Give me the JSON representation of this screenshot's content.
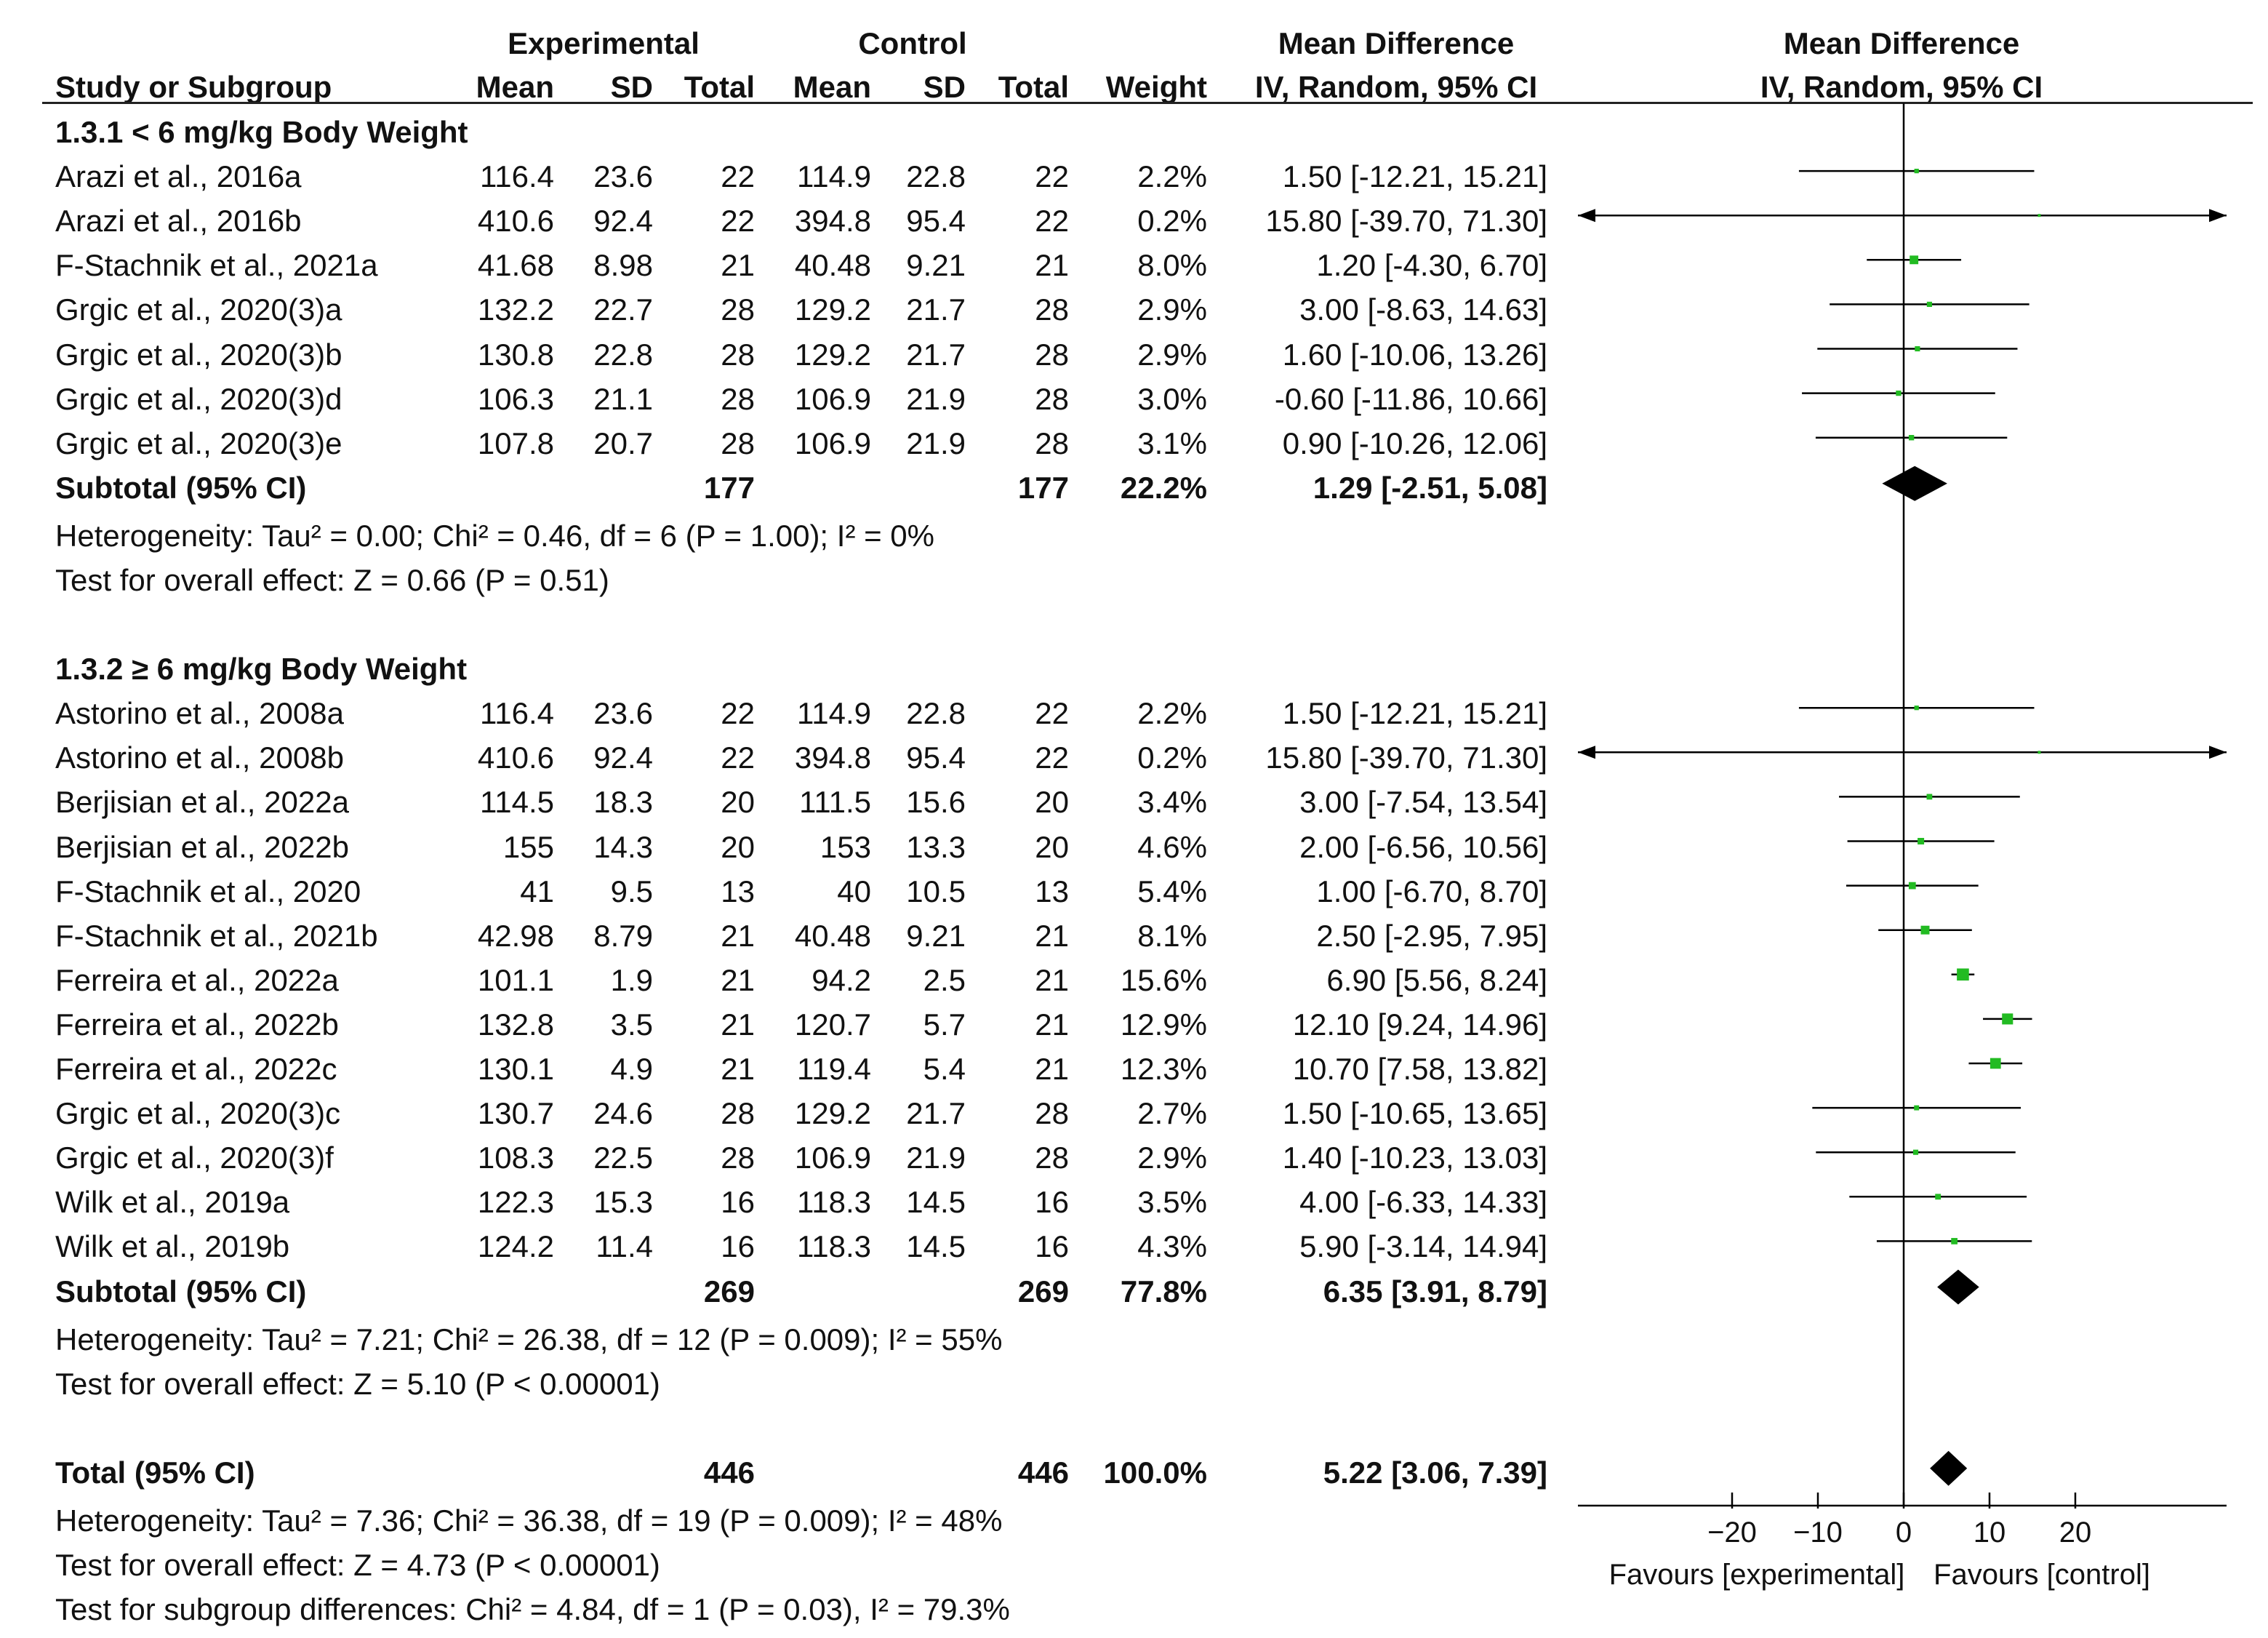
{
  "chart_data": {
    "type": "forest",
    "group_headers": {
      "experimental": "Experimental",
      "control": "Control",
      "effect_table": "Mean Difference",
      "effect_plot": "Mean Difference"
    },
    "columns": {
      "study": "Study or Subgroup",
      "exp_mean": "Mean",
      "exp_sd": "SD",
      "exp_total": "Total",
      "ctl_mean": "Mean",
      "ctl_sd": "SD",
      "ctl_total": "Total",
      "weight": "Weight",
      "ci": "IV, Random, 95% CI",
      "plot_ci": "IV, Random, 95% CI"
    },
    "subgroups": [
      {
        "title": "1.3.1 < 6 mg/kg Body Weight",
        "studies": [
          {
            "name": "Arazi et al., 2016a",
            "exp_mean": "116.4",
            "exp_sd": "23.6",
            "exp_total": "22",
            "ctl_mean": "114.9",
            "ctl_sd": "22.8",
            "ctl_total": "22",
            "weight": "2.2%",
            "ci": "1.50 [-12.21, 15.21]",
            "md": 1.5,
            "lo": -12.21,
            "hi": 15.21
          },
          {
            "name": "Arazi et al., 2016b",
            "exp_mean": "410.6",
            "exp_sd": "92.4",
            "exp_total": "22",
            "ctl_mean": "394.8",
            "ctl_sd": "95.4",
            "ctl_total": "22",
            "weight": "0.2%",
            "ci": "15.80 [-39.70, 71.30]",
            "md": 15.8,
            "lo": -39.7,
            "hi": 71.3
          },
          {
            "name": "F-Stachnik et al., 2021a",
            "exp_mean": "41.68",
            "exp_sd": "8.98",
            "exp_total": "21",
            "ctl_mean": "40.48",
            "ctl_sd": "9.21",
            "ctl_total": "21",
            "weight": "8.0%",
            "ci": "1.20 [-4.30, 6.70]",
            "md": 1.2,
            "lo": -4.3,
            "hi": 6.7
          },
          {
            "name": "Grgic et al., 2020(3)a",
            "exp_mean": "132.2",
            "exp_sd": "22.7",
            "exp_total": "28",
            "ctl_mean": "129.2",
            "ctl_sd": "21.7",
            "ctl_total": "28",
            "weight": "2.9%",
            "ci": "3.00 [-8.63, 14.63]",
            "md": 3.0,
            "lo": -8.63,
            "hi": 14.63
          },
          {
            "name": "Grgic et al., 2020(3)b",
            "exp_mean": "130.8",
            "exp_sd": "22.8",
            "exp_total": "28",
            "ctl_mean": "129.2",
            "ctl_sd": "21.7",
            "ctl_total": "28",
            "weight": "2.9%",
            "ci": "1.60 [-10.06, 13.26]",
            "md": 1.6,
            "lo": -10.06,
            "hi": 13.26
          },
          {
            "name": "Grgic et al., 2020(3)d",
            "exp_mean": "106.3",
            "exp_sd": "21.1",
            "exp_total": "28",
            "ctl_mean": "106.9",
            "ctl_sd": "21.9",
            "ctl_total": "28",
            "weight": "3.0%",
            "ci": "-0.60 [-11.86, 10.66]",
            "md": -0.6,
            "lo": -11.86,
            "hi": 10.66
          },
          {
            "name": "Grgic et al., 2020(3)e",
            "exp_mean": "107.8",
            "exp_sd": "20.7",
            "exp_total": "28",
            "ctl_mean": "106.9",
            "ctl_sd": "21.9",
            "ctl_total": "28",
            "weight": "3.1%",
            "ci": "0.90 [-10.26, 12.06]",
            "md": 0.9,
            "lo": -10.26,
            "hi": 12.06
          }
        ],
        "subtotal": {
          "label": "Subtotal (95% CI)",
          "exp_total": "177",
          "ctl_total": "177",
          "weight": "22.2%",
          "ci": "1.29 [-2.51, 5.08]",
          "md": 1.29,
          "lo": -2.51,
          "hi": 5.08
        },
        "heterogeneity": "Heterogeneity: Tau² = 0.00; Chi² = 0.46, df = 6 (P = 1.00); I² = 0%",
        "overall": "Test for overall effect: Z = 0.66 (P = 0.51)"
      },
      {
        "title": "1.3.2 ≥ 6 mg/kg Body Weight",
        "studies": [
          {
            "name": "Astorino et al., 2008a",
            "exp_mean": "116.4",
            "exp_sd": "23.6",
            "exp_total": "22",
            "ctl_mean": "114.9",
            "ctl_sd": "22.8",
            "ctl_total": "22",
            "weight": "2.2%",
            "ci": "1.50 [-12.21, 15.21]",
            "md": 1.5,
            "lo": -12.21,
            "hi": 15.21
          },
          {
            "name": "Astorino et al., 2008b",
            "exp_mean": "410.6",
            "exp_sd": "92.4",
            "exp_total": "22",
            "ctl_mean": "394.8",
            "ctl_sd": "95.4",
            "ctl_total": "22",
            "weight": "0.2%",
            "ci": "15.80 [-39.70, 71.30]",
            "md": 15.8,
            "lo": -39.7,
            "hi": 71.3
          },
          {
            "name": "Berjisian et al., 2022a",
            "exp_mean": "114.5",
            "exp_sd": "18.3",
            "exp_total": "20",
            "ctl_mean": "111.5",
            "ctl_sd": "15.6",
            "ctl_total": "20",
            "weight": "3.4%",
            "ci": "3.00 [-7.54, 13.54]",
            "md": 3.0,
            "lo": -7.54,
            "hi": 13.54
          },
          {
            "name": "Berjisian et al., 2022b",
            "exp_mean": "155",
            "exp_sd": "14.3",
            "exp_total": "20",
            "ctl_mean": "153",
            "ctl_sd": "13.3",
            "ctl_total": "20",
            "weight": "4.6%",
            "ci": "2.00 [-6.56, 10.56]",
            "md": 2.0,
            "lo": -6.56,
            "hi": 10.56
          },
          {
            "name": "F-Stachnik et al., 2020",
            "exp_mean": "41",
            "exp_sd": "9.5",
            "exp_total": "13",
            "ctl_mean": "40",
            "ctl_sd": "10.5",
            "ctl_total": "13",
            "weight": "5.4%",
            "ci": "1.00 [-6.70, 8.70]",
            "md": 1.0,
            "lo": -6.7,
            "hi": 8.7
          },
          {
            "name": "F-Stachnik et al., 2021b",
            "exp_mean": "42.98",
            "exp_sd": "8.79",
            "exp_total": "21",
            "ctl_mean": "40.48",
            "ctl_sd": "9.21",
            "ctl_total": "21",
            "weight": "8.1%",
            "ci": "2.50 [-2.95, 7.95]",
            "md": 2.5,
            "lo": -2.95,
            "hi": 7.95
          },
          {
            "name": "Ferreira et al., 2022a",
            "exp_mean": "101.1",
            "exp_sd": "1.9",
            "exp_total": "21",
            "ctl_mean": "94.2",
            "ctl_sd": "2.5",
            "ctl_total": "21",
            "weight": "15.6%",
            "ci": "6.90 [5.56, 8.24]",
            "md": 6.9,
            "lo": 5.56,
            "hi": 8.24
          },
          {
            "name": "Ferreira et al., 2022b",
            "exp_mean": "132.8",
            "exp_sd": "3.5",
            "exp_total": "21",
            "ctl_mean": "120.7",
            "ctl_sd": "5.7",
            "ctl_total": "21",
            "weight": "12.9%",
            "ci": "12.10 [9.24, 14.96]",
            "md": 12.1,
            "lo": 9.24,
            "hi": 14.96
          },
          {
            "name": "Ferreira et al., 2022c",
            "exp_mean": "130.1",
            "exp_sd": "4.9",
            "exp_total": "21",
            "ctl_mean": "119.4",
            "ctl_sd": "5.4",
            "ctl_total": "21",
            "weight": "12.3%",
            "ci": "10.70 [7.58, 13.82]",
            "md": 10.7,
            "lo": 7.58,
            "hi": 13.82
          },
          {
            "name": "Grgic et al., 2020(3)c",
            "exp_mean": "130.7",
            "exp_sd": "24.6",
            "exp_total": "28",
            "ctl_mean": "129.2",
            "ctl_sd": "21.7",
            "ctl_total": "28",
            "weight": "2.7%",
            "ci": "1.50 [-10.65, 13.65]",
            "md": 1.5,
            "lo": -10.65,
            "hi": 13.65
          },
          {
            "name": "Grgic et al., 2020(3)f",
            "exp_mean": "108.3",
            "exp_sd": "22.5",
            "exp_total": "28",
            "ctl_mean": "106.9",
            "ctl_sd": "21.9",
            "ctl_total": "28",
            "weight": "2.9%",
            "ci": "1.40 [-10.23, 13.03]",
            "md": 1.4,
            "lo": -10.23,
            "hi": 13.03
          },
          {
            "name": "Wilk et al., 2019a",
            "exp_mean": "122.3",
            "exp_sd": "15.3",
            "exp_total": "16",
            "ctl_mean": "118.3",
            "ctl_sd": "14.5",
            "ctl_total": "16",
            "weight": "3.5%",
            "ci": "4.00 [-6.33, 14.33]",
            "md": 4.0,
            "lo": -6.33,
            "hi": 14.33
          },
          {
            "name": "Wilk et al., 2019b",
            "exp_mean": "124.2",
            "exp_sd": "11.4",
            "exp_total": "16",
            "ctl_mean": "118.3",
            "ctl_sd": "14.5",
            "ctl_total": "16",
            "weight": "4.3%",
            "ci": "5.90 [-3.14, 14.94]",
            "md": 5.9,
            "lo": -3.14,
            "hi": 14.94
          }
        ],
        "subtotal": {
          "label": "Subtotal (95% CI)",
          "exp_total": "269",
          "ctl_total": "269",
          "weight": "77.8%",
          "ci": "6.35 [3.91, 8.79]",
          "md": 6.35,
          "lo": 3.91,
          "hi": 8.79
        },
        "heterogeneity": "Heterogeneity: Tau² = 7.21; Chi² = 26.38, df = 12 (P = 0.009); I² = 55%",
        "overall": "Test for overall effect: Z = 5.10 (P < 0.00001)"
      }
    ],
    "total": {
      "label": "Total (95% CI)",
      "exp_total": "446",
      "ctl_total": "446",
      "weight": "100.0%",
      "ci": "5.22 [3.06, 7.39]",
      "md": 5.22,
      "lo": 3.06,
      "hi": 7.39
    },
    "footer": [
      "Heterogeneity: Tau² = 7.36; Chi² = 36.38, df = 19 (P = 0.009); I² = 48%",
      "Test for overall effect: Z = 4.73 (P < 0.00001)",
      "Test for subgroup differences: Chi² = 4.84, df = 1 (P = 0.03), I² = 79.3%"
    ],
    "axis": {
      "xlim": [
        -38,
        38
      ],
      "ticks": [
        -20,
        -10,
        0,
        10,
        20
      ],
      "tick_labels": [
        "−20",
        "−10",
        "0",
        "10",
        "20"
      ],
      "left_label": "Favours [experimental]",
      "right_label": "Favours [control]"
    },
    "colors": {
      "square": "#22bb22",
      "line": "#000000",
      "diamond": "#000000"
    }
  }
}
